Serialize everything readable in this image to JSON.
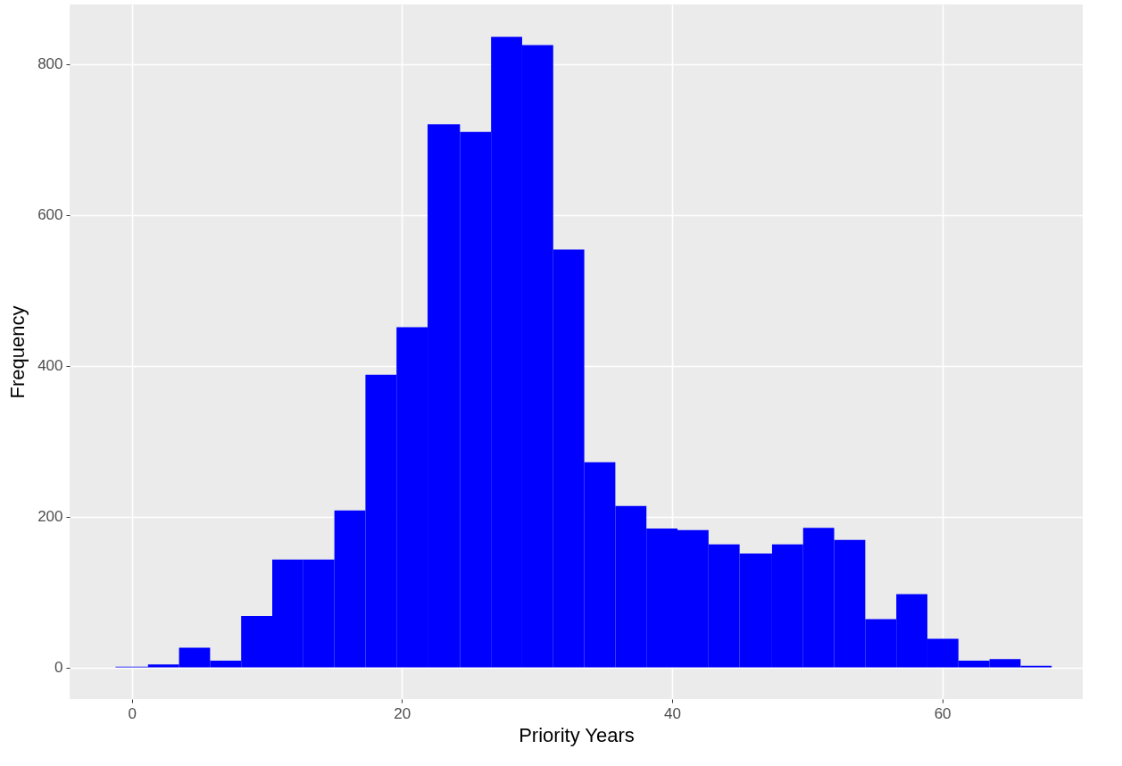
{
  "chart_data": {
    "type": "histogram",
    "xlabel": "Priority Years",
    "ylabel": "Frequency",
    "color": "#0000ff",
    "bins": [
      -1.2,
      1.2,
      3.5,
      5.8,
      8.1,
      10.4,
      12.7,
      15.0,
      17.3,
      19.6,
      21.9,
      24.3,
      26.6,
      28.9,
      31.2,
      33.5,
      35.8,
      38.1,
      40.4,
      42.7,
      45.0,
      47.4,
      49.7,
      52.0,
      54.3,
      56.6,
      58.9,
      61.2,
      63.5,
      65.8,
      68.1
    ],
    "values": [
      1,
      4,
      26,
      9,
      68,
      143,
      143,
      208,
      388,
      451,
      720,
      710,
      836,
      825,
      554,
      272,
      214,
      184,
      182,
      163,
      151,
      163,
      185,
      169,
      64,
      97,
      38,
      9,
      11,
      2
    ],
    "xlim": [
      -4.6,
      70.4
    ],
    "ylim": [
      -42,
      879
    ],
    "xticks": [
      0,
      20,
      40,
      60
    ],
    "yticks": [
      0,
      200,
      400,
      600,
      800
    ],
    "grid": true
  }
}
